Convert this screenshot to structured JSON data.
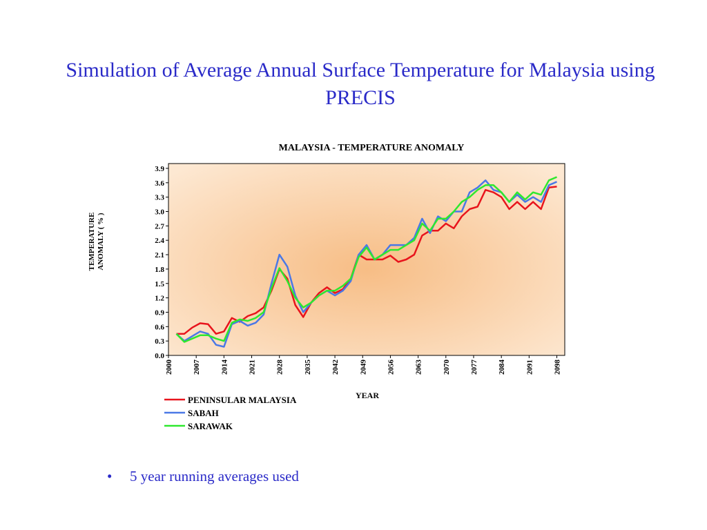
{
  "slide": {
    "title": "Simulation of Average Annual Surface Temperature for Malaysia using PRECIS",
    "bullets": [
      "5 year running averages used"
    ]
  },
  "chart_data": {
    "type": "line",
    "title": "MALAYSIA - TEMPERATURE ANOMALY",
    "xlabel": "YEAR",
    "ylabel": "TEMPERATURE ANOMALY ( % )",
    "x": [
      2002,
      2004,
      2006,
      2008,
      2010,
      2012,
      2014,
      2016,
      2018,
      2020,
      2022,
      2024,
      2026,
      2028,
      2030,
      2032,
      2034,
      2036,
      2038,
      2040,
      2042,
      2044,
      2046,
      2048,
      2050,
      2052,
      2054,
      2056,
      2058,
      2060,
      2062,
      2064,
      2066,
      2068,
      2070,
      2072,
      2074,
      2076,
      2078,
      2080,
      2082,
      2084,
      2086,
      2088,
      2090,
      2092,
      2094,
      2096,
      2098
    ],
    "series": [
      {
        "name": "PENINSULAR MALAYSIA",
        "color": "#e8141c",
        "values": [
          0.45,
          0.45,
          0.58,
          0.67,
          0.65,
          0.45,
          0.5,
          0.78,
          0.7,
          0.82,
          0.88,
          1.0,
          1.35,
          1.8,
          1.6,
          1.05,
          0.8,
          1.1,
          1.3,
          1.42,
          1.3,
          1.38,
          1.6,
          2.1,
          2.0,
          2.0,
          2.0,
          2.08,
          1.95,
          2.0,
          2.1,
          2.5,
          2.6,
          2.6,
          2.75,
          2.65,
          2.9,
          3.05,
          3.1,
          3.45,
          3.4,
          3.3,
          3.05,
          3.2,
          3.05,
          3.2,
          3.05,
          3.5,
          3.52
        ]
      },
      {
        "name": "SABAH",
        "color": "#4a78e6",
        "values": [
          0.45,
          0.3,
          0.4,
          0.5,
          0.45,
          0.22,
          0.18,
          0.65,
          0.72,
          0.62,
          0.68,
          0.85,
          1.5,
          2.1,
          1.85,
          1.25,
          0.9,
          1.1,
          1.25,
          1.35,
          1.25,
          1.35,
          1.55,
          2.1,
          2.3,
          2.0,
          2.1,
          2.3,
          2.3,
          2.3,
          2.45,
          2.85,
          2.55,
          2.9,
          2.8,
          3.0,
          3.0,
          3.4,
          3.5,
          3.65,
          3.45,
          3.4,
          3.2,
          3.35,
          3.2,
          3.3,
          3.2,
          3.55,
          3.62
        ]
      },
      {
        "name": "SARAWAK",
        "color": "#2ee82e",
        "values": [
          0.45,
          0.28,
          0.35,
          0.42,
          0.42,
          0.35,
          0.3,
          0.68,
          0.75,
          0.72,
          0.78,
          0.9,
          1.4,
          1.82,
          1.55,
          1.2,
          1.0,
          1.1,
          1.25,
          1.35,
          1.35,
          1.45,
          1.6,
          2.05,
          2.25,
          2.0,
          2.1,
          2.2,
          2.2,
          2.3,
          2.4,
          2.75,
          2.6,
          2.85,
          2.85,
          3.0,
          3.2,
          3.3,
          3.45,
          3.55,
          3.55,
          3.4,
          3.2,
          3.4,
          3.25,
          3.4,
          3.35,
          3.65,
          3.72
        ]
      }
    ],
    "xlim": [
      2000,
      2100
    ],
    "ylim": [
      0,
      4
    ],
    "xticks": [
      2000,
      2007,
      2014,
      2021,
      2028,
      2035,
      2042,
      2049,
      2056,
      2063,
      2070,
      2077,
      2084,
      2091,
      2098
    ],
    "yticks": [
      {
        "value": 0,
        "label": "0.0"
      },
      0.3,
      0.6,
      0.9,
      1.2,
      1.5,
      1.8,
      2.1,
      2.4,
      2.7,
      {
        "value": 3,
        "label": "3.0"
      },
      3.3,
      3.6,
      3.9
    ],
    "legend": "bottom-left"
  }
}
